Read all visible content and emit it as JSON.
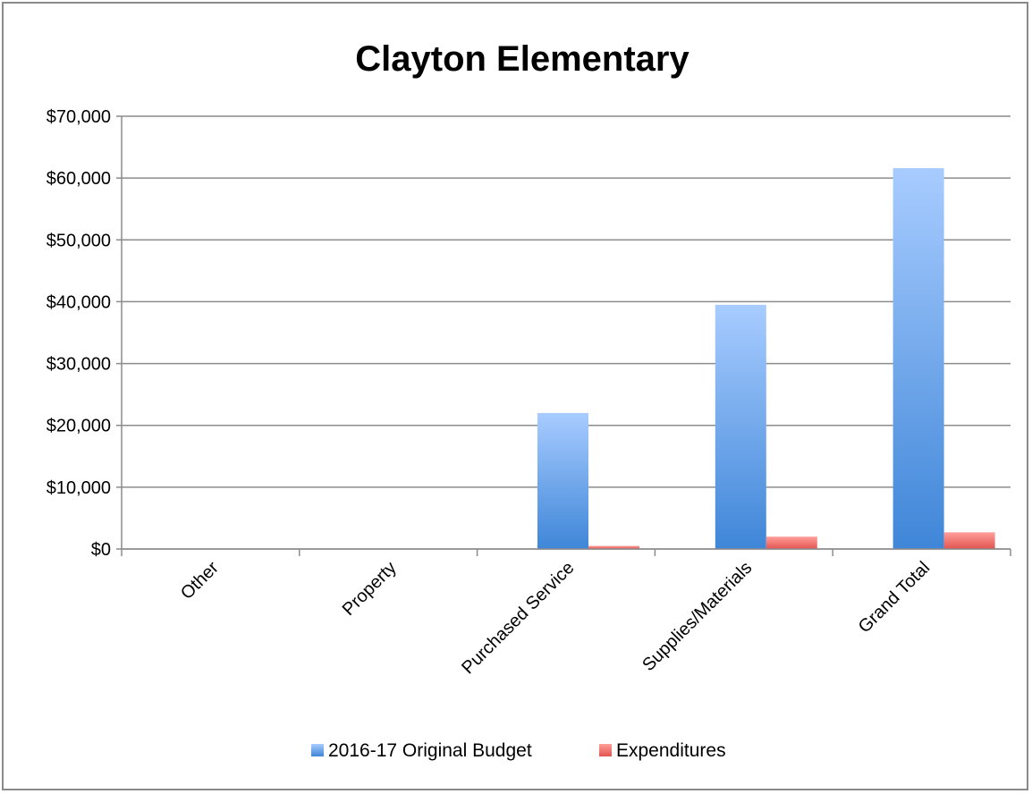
{
  "chart_data": {
    "type": "bar",
    "title": "Clayton Elementary",
    "xlabel": "",
    "ylabel": "",
    "categories": [
      "Other",
      "Property",
      "Purchased Service",
      "Supplies/Materials",
      "Grand Total"
    ],
    "series": [
      {
        "name": "2016-17 Original Budget",
        "values": [
          0,
          0,
          22000,
          39500,
          61600
        ],
        "color": "#5c9be3"
      },
      {
        "name": "Expenditures",
        "values": [
          0,
          0,
          500,
          2000,
          2700
        ],
        "color": "#e86a66"
      }
    ],
    "ylim": [
      0,
      70000
    ],
    "yticks": [
      0,
      10000,
      20000,
      30000,
      40000,
      50000,
      60000,
      70000
    ],
    "ytick_labels": [
      "$0",
      "$10,000",
      "$20,000",
      "$30,000",
      "$40,000",
      "$50,000",
      "$60,000",
      "$70,000"
    ],
    "grid": true,
    "legend_position": "bottom"
  }
}
